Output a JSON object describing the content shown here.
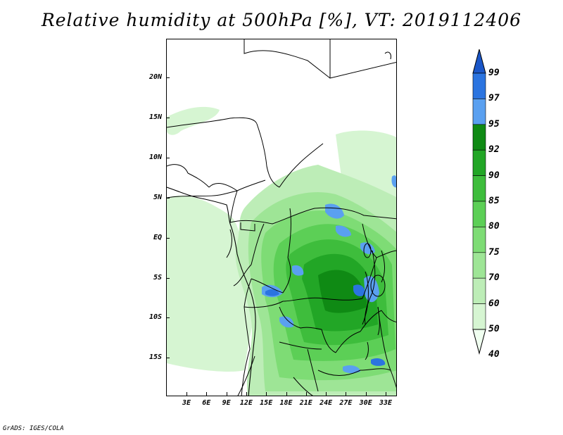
{
  "title": "Relative humidity at 500hPa [%], VT: 2019112406",
  "credit": "GrADS: IGES/COLA",
  "map": {
    "lat_labels": [
      "20N",
      "15N",
      "10N",
      "5N",
      "EQ",
      "5S",
      "10S",
      "15S"
    ],
    "lon_labels": [
      "3E",
      "6E",
      "9E",
      "12E",
      "15E",
      "18E",
      "21E",
      "24E",
      "27E",
      "30E",
      "33E"
    ]
  },
  "colorbar": {
    "labels": [
      "99",
      "97",
      "95",
      "92",
      "90",
      "85",
      "80",
      "75",
      "70",
      "60",
      "50",
      "40"
    ],
    "colors": {
      "c40": "#f0fff0",
      "c50": "#d6f5d2",
      "c60": "#bdedb7",
      "c70": "#9ee596",
      "c75": "#7edc75",
      "c80": "#5ccf56",
      "c85": "#3ebd3c",
      "c90": "#22a626",
      "c92": "#0f8a14",
      "c95": "#5aa0f0",
      "c97": "#2b74e0",
      "c99": "#1a56c8"
    }
  }
}
